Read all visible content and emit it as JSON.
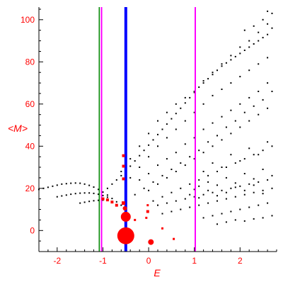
{
  "chart_data": {
    "type": "scatter",
    "title": "",
    "xlabel": "E",
    "ylabel": "<M>",
    "xlim": [
      -2.4,
      2.8
    ],
    "ylim": [
      -10,
      106
    ],
    "x_ticks": [
      {
        "value": -2,
        "label": "-2"
      },
      {
        "value": -1,
        "label": "-1"
      },
      {
        "value": 0,
        "label": "0"
      },
      {
        "value": 1,
        "label": "1"
      },
      {
        "value": 2,
        "label": "2"
      }
    ],
    "y_ticks": [
      {
        "value": 0,
        "label": "0"
      },
      {
        "value": 20,
        "label": "20"
      },
      {
        "value": 40,
        "label": "40"
      },
      {
        "value": 60,
        "label": "60"
      },
      {
        "value": 80,
        "label": "80"
      },
      {
        "value": 100,
        "label": "100"
      }
    ],
    "grid": false,
    "axis_color": "#000000",
    "label_color": "#ff0000",
    "vertical_lines": [
      {
        "x": -1.08,
        "color": "#008000",
        "width": 1.5
      },
      {
        "x": -1.03,
        "color": "#ff00ff",
        "width": 2
      },
      {
        "x": -0.5,
        "color": "#0000ff",
        "width": 4
      },
      {
        "x": 1.02,
        "color": "#ff00ff",
        "width": 2
      }
    ],
    "highlight_series": {
      "color": "#ff0000",
      "points": [
        {
          "x": -0.5,
          "y": -2.5,
          "size": 12
        },
        {
          "x": -0.5,
          "y": 6.5,
          "size": 7
        },
        {
          "x": 0.05,
          "y": -5.5,
          "size": 4
        },
        {
          "x": -0.52,
          "y": 10.5,
          "size": 3
        },
        {
          "x": -0.55,
          "y": 13.0,
          "size": 2.5
        },
        {
          "x": -0.7,
          "y": 12.0,
          "size": 2
        },
        {
          "x": -0.8,
          "y": 13.5,
          "size": 2
        },
        {
          "x": -0.9,
          "y": 14.5,
          "size": 2
        },
        {
          "x": -1.0,
          "y": 15.0,
          "size": 2
        },
        {
          "x": -0.55,
          "y": 24.5,
          "size": 2
        },
        {
          "x": -0.55,
          "y": 30.5,
          "size": 2
        },
        {
          "x": -0.55,
          "y": 35.5,
          "size": 2
        },
        {
          "x": -0.02,
          "y": 9.0,
          "size": 2
        },
        {
          "x": 0.3,
          "y": 1.0,
          "size": 1.5
        },
        {
          "x": 0.55,
          "y": -4.0,
          "size": 1.5
        },
        {
          "x": -0.05,
          "y": 6.0,
          "size": 1.5
        },
        {
          "x": -0.02,
          "y": 12.0,
          "size": 1.5
        },
        {
          "x": -0.3,
          "y": 5.0,
          "size": 1.5
        }
      ]
    },
    "background_series": {
      "color": "#000000",
      "points": [
        [
          -2.4,
          19.5
        ],
        [
          -2.3,
          20.0
        ],
        [
          -2.2,
          20.5
        ],
        [
          -2.1,
          21.0
        ],
        [
          -2.0,
          21.5
        ],
        [
          -1.9,
          22.0
        ],
        [
          -1.8,
          22.2
        ],
        [
          -1.7,
          22.4
        ],
        [
          -1.6,
          22.5
        ],
        [
          -1.5,
          22.4
        ],
        [
          -1.4,
          22.0
        ],
        [
          -1.3,
          21.4
        ],
        [
          -1.2,
          20.6
        ],
        [
          -1.1,
          19.5
        ],
        [
          -1.0,
          18.2
        ],
        [
          -0.9,
          16.8
        ],
        [
          -0.8,
          15.2
        ],
        [
          -0.7,
          13.6
        ],
        [
          -0.6,
          12.0
        ],
        [
          -0.5,
          10.5
        ],
        [
          -2.0,
          16.0
        ],
        [
          -1.9,
          16.4
        ],
        [
          -1.8,
          16.8
        ],
        [
          -1.7,
          17.2
        ],
        [
          -1.6,
          17.5
        ],
        [
          -1.5,
          17.7
        ],
        [
          -1.4,
          17.8
        ],
        [
          -1.3,
          17.8
        ],
        [
          -1.2,
          17.6
        ],
        [
          -1.1,
          17.2
        ],
        [
          -1.0,
          16.6
        ],
        [
          -0.9,
          15.8
        ],
        [
          -1.5,
          13.0
        ],
        [
          -1.4,
          13.4
        ],
        [
          -1.3,
          13.8
        ],
        [
          -1.2,
          14.1
        ],
        [
          -1.1,
          14.3
        ],
        [
          -1.0,
          14.4
        ],
        [
          -0.9,
          20.0
        ],
        [
          -0.8,
          22.0
        ],
        [
          -0.7,
          24.0
        ],
        [
          -0.6,
          26.0
        ],
        [
          -0.5,
          28.0
        ],
        [
          -0.4,
          30.5
        ],
        [
          -0.3,
          33.0
        ],
        [
          -0.2,
          35.5
        ],
        [
          -0.1,
          38.0
        ],
        [
          0.0,
          40.5
        ],
        [
          0.1,
          43.0
        ],
        [
          0.2,
          45.5
        ],
        [
          0.3,
          48.0
        ],
        [
          0.4,
          50.5
        ],
        [
          0.5,
          53.0
        ],
        [
          0.6,
          55.5
        ],
        [
          0.7,
          58.0
        ],
        [
          0.8,
          60.5
        ],
        [
          0.9,
          63.0
        ],
        [
          1.0,
          65.5
        ],
        [
          1.1,
          68.0
        ],
        [
          1.2,
          70.0
        ],
        [
          1.3,
          72.0
        ],
        [
          1.4,
          74.0
        ],
        [
          1.5,
          76.0
        ],
        [
          1.6,
          78.0
        ],
        [
          1.7,
          79.5
        ],
        [
          1.8,
          81.0
        ],
        [
          1.9,
          82.5
        ],
        [
          2.0,
          84.0
        ],
        [
          2.1,
          85.5
        ],
        [
          2.2,
          87.0
        ],
        [
          2.3,
          88.5
        ],
        [
          2.4,
          90.0
        ],
        [
          2.5,
          91.5
        ],
        [
          2.6,
          93.0
        ],
        [
          2.7,
          96.0
        ],
        [
          -0.6,
          28.0
        ],
        [
          -0.4,
          34.0
        ],
        [
          -0.2,
          40.0
        ],
        [
          0.0,
          46.0
        ],
        [
          0.2,
          52.0
        ],
        [
          0.4,
          56.0
        ],
        [
          0.6,
          60.0
        ],
        [
          0.8,
          63.0
        ],
        [
          1.0,
          66.0
        ],
        [
          1.2,
          71.0
        ],
        [
          1.4,
          75.0
        ],
        [
          1.6,
          79.0
        ],
        [
          1.8,
          83.0
        ],
        [
          2.0,
          87.0
        ],
        [
          2.2,
          90.0
        ],
        [
          2.4,
          94.0
        ],
        [
          2.6,
          98.0
        ],
        [
          2.7,
          103.0
        ],
        [
          -0.4,
          25.0
        ],
        [
          -0.2,
          30.0
        ],
        [
          0.0,
          35.0
        ],
        [
          0.2,
          40.0
        ],
        [
          0.4,
          44.0
        ],
        [
          0.6,
          48.0
        ],
        [
          0.8,
          52.0
        ],
        [
          1.0,
          56.0
        ],
        [
          1.2,
          60.0
        ],
        [
          1.4,
          64.0
        ],
        [
          1.6,
          67.0
        ],
        [
          1.8,
          70.0
        ],
        [
          2.0,
          73.0
        ],
        [
          2.2,
          76.0
        ],
        [
          2.4,
          79.0
        ],
        [
          2.6,
          82.0
        ],
        [
          -0.2,
          24.0
        ],
        [
          0.0,
          27.0
        ],
        [
          0.2,
          31.0
        ],
        [
          0.4,
          34.0
        ],
        [
          0.6,
          37.0
        ],
        [
          0.8,
          41.0
        ],
        [
          1.0,
          44.0
        ],
        [
          1.2,
          48.0
        ],
        [
          1.4,
          51.0
        ],
        [
          1.6,
          54.0
        ],
        [
          1.8,
          57.0
        ],
        [
          2.0,
          60.0
        ],
        [
          2.2,
          63.0
        ],
        [
          2.4,
          66.0
        ],
        [
          2.6,
          70.0
        ],
        [
          0.0,
          19.0
        ],
        [
          0.2,
          22.0
        ],
        [
          0.4,
          25.0
        ],
        [
          0.6,
          28.0
        ],
        [
          0.8,
          31.0
        ],
        [
          1.0,
          34.0
        ],
        [
          1.2,
          37.0
        ],
        [
          1.4,
          40.0
        ],
        [
          1.6,
          43.0
        ],
        [
          1.8,
          46.0
        ],
        [
          2.0,
          49.0
        ],
        [
          2.2,
          52.0
        ],
        [
          2.4,
          55.0
        ],
        [
          2.6,
          58.0
        ],
        [
          0.1,
          14.0
        ],
        [
          0.3,
          16.0
        ],
        [
          0.5,
          18.0
        ],
        [
          0.7,
          20.0
        ],
        [
          0.9,
          22.0
        ],
        [
          1.1,
          24.0
        ],
        [
          1.3,
          26.0
        ],
        [
          1.5,
          28.0
        ],
        [
          1.7,
          30.0
        ],
        [
          1.9,
          32.0
        ],
        [
          2.1,
          34.0
        ],
        [
          2.3,
          36.0
        ],
        [
          2.5,
          38.0
        ],
        [
          2.7,
          40.0
        ],
        [
          0.2,
          12.0
        ],
        [
          0.4,
          13.0
        ],
        [
          0.6,
          14.0
        ],
        [
          0.8,
          15.0
        ],
        [
          1.0,
          16.0
        ],
        [
          1.2,
          17.0
        ],
        [
          1.4,
          18.0
        ],
        [
          1.6,
          19.0
        ],
        [
          1.8,
          20.0
        ],
        [
          2.0,
          21.0
        ],
        [
          2.2,
          22.0
        ],
        [
          2.4,
          23.0
        ],
        [
          2.6,
          24.0
        ],
        [
          0.3,
          8.0
        ],
        [
          0.5,
          9.0
        ],
        [
          0.7,
          10.0
        ],
        [
          0.9,
          11.0
        ],
        [
          1.1,
          12.0
        ],
        [
          1.3,
          13.0
        ],
        [
          1.5,
          14.0
        ],
        [
          1.7,
          15.0
        ],
        [
          1.9,
          16.0
        ],
        [
          2.1,
          17.0
        ],
        [
          2.3,
          18.0
        ],
        [
          2.5,
          19.0
        ],
        [
          2.7,
          20.0
        ],
        [
          1.2,
          6.0
        ],
        [
          1.4,
          7.0
        ],
        [
          1.6,
          8.0
        ],
        [
          1.8,
          9.0
        ],
        [
          2.0,
          10.0
        ],
        [
          2.2,
          11.0
        ],
        [
          2.4,
          12.0
        ],
        [
          2.6,
          13.0
        ],
        [
          1.5,
          3.0
        ],
        [
          1.7,
          4.0
        ],
        [
          1.9,
          5.0
        ],
        [
          2.1,
          4.5
        ],
        [
          2.3,
          5.5
        ],
        [
          2.5,
          6.0
        ],
        [
          2.7,
          7.0
        ],
        [
          1.1,
          21.0
        ],
        [
          1.3,
          23.0
        ],
        [
          1.5,
          21.5
        ],
        [
          1.7,
          25.0
        ],
        [
          1.9,
          22.5
        ],
        [
          2.1,
          27.0
        ],
        [
          2.3,
          24.5
        ],
        [
          2.5,
          29.0
        ],
        [
          2.7,
          26.0
        ],
        [
          1.2,
          28.0
        ],
        [
          1.4,
          32.0
        ],
        [
          1.6,
          30.0
        ],
        [
          1.8,
          36.0
        ],
        [
          2.0,
          33.0
        ],
        [
          2.2,
          39.0
        ],
        [
          2.4,
          36.0
        ],
        [
          2.6,
          42.0
        ],
        [
          0.9,
          17.0
        ],
        [
          1.0,
          19.5
        ],
        [
          1.1,
          15.5
        ],
        [
          1.3,
          19.0
        ],
        [
          1.5,
          16.5
        ],
        [
          1.7,
          18.0
        ],
        [
          1.9,
          20.5
        ],
        [
          2.1,
          19.0
        ],
        [
          2.3,
          21.5
        ],
        [
          2.5,
          17.5
        ],
        [
          -0.3,
          17.0
        ],
        [
          -0.1,
          20.0
        ],
        [
          0.1,
          23.0
        ],
        [
          0.3,
          26.0
        ],
        [
          0.5,
          29.0
        ],
        [
          0.7,
          32.0
        ],
        [
          0.9,
          35.0
        ],
        [
          1.1,
          38.0
        ],
        [
          1.3,
          42.0
        ],
        [
          1.5,
          45.0
        ],
        [
          1.7,
          49.0
        ],
        [
          1.9,
          52.0
        ],
        [
          2.1,
          56.0
        ],
        [
          2.3,
          59.0
        ],
        [
          2.5,
          62.0
        ],
        [
          2.7,
          66.0
        ],
        [
          2.6,
          104.0
        ],
        [
          2.5,
          100.0
        ],
        [
          2.3,
          97.0
        ],
        [
          2.1,
          95.0
        ]
      ]
    }
  }
}
